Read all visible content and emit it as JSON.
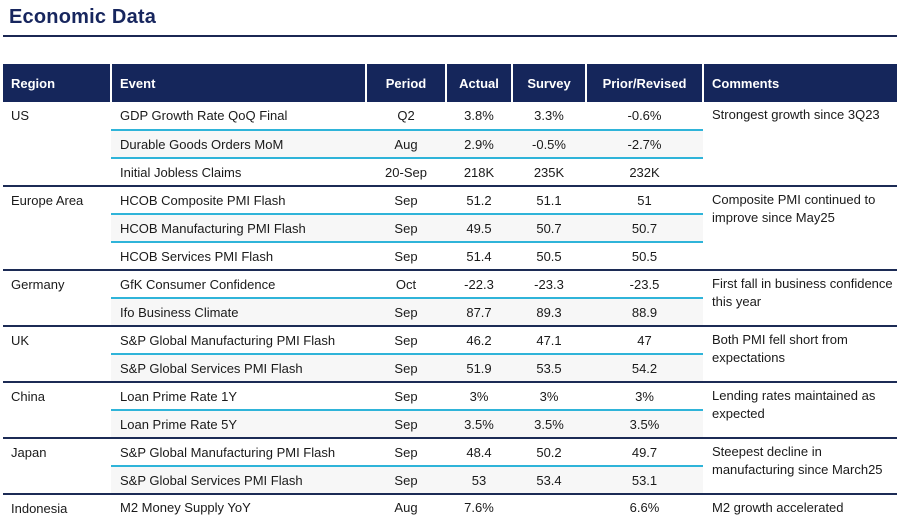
{
  "page_title": "Economic Data",
  "colors": {
    "navy_header": "#15265B",
    "navy_title": "#17265E",
    "cyan_divider": "#2FB4D9",
    "group_divider": "#1C2B55"
  },
  "table": {
    "headers": [
      "Region",
      "Event",
      "Period",
      "Actual",
      "Survey",
      "Prior/Revised",
      "Comments"
    ],
    "groups": [
      {
        "region": "US",
        "comment": "Strongest growth since 3Q23",
        "rows": [
          {
            "event": "GDP Growth Rate QoQ Final",
            "period": "Q2",
            "actual": "3.8%",
            "survey": "3.3%",
            "prior": "-0.6%"
          },
          {
            "event": "Durable Goods Orders MoM",
            "period": "Aug",
            "actual": "2.9%",
            "survey": "-0.5%",
            "prior": "-2.7%"
          },
          {
            "event": "Initial Jobless Claims",
            "period": "20-Sep",
            "actual": "218K",
            "survey": "235K",
            "prior": "232K"
          }
        ]
      },
      {
        "region": "Europe Area",
        "comment": "Composite PMI continued to improve since May25",
        "rows": [
          {
            "event": "HCOB Composite PMI Flash",
            "period": "Sep",
            "actual": "51.2",
            "survey": "51.1",
            "prior": "51"
          },
          {
            "event": "HCOB Manufacturing PMI Flash",
            "period": "Sep",
            "actual": "49.5",
            "survey": "50.7",
            "prior": "50.7"
          },
          {
            "event": "HCOB Services PMI Flash",
            "period": "Sep",
            "actual": "51.4",
            "survey": "50.5",
            "prior": "50.5"
          }
        ]
      },
      {
        "region": "Germany",
        "comment": "First fall in business confidence this year",
        "rows": [
          {
            "event": "GfK Consumer Confidence",
            "period": "Oct",
            "actual": "-22.3",
            "survey": "-23.3",
            "prior": "-23.5"
          },
          {
            "event": "Ifo Business Climate",
            "period": "Sep",
            "actual": "87.7",
            "survey": "89.3",
            "prior": "88.9"
          }
        ]
      },
      {
        "region": "UK",
        "comment": "Both PMI fell short from expectations",
        "rows": [
          {
            "event": "S&P Global Manufacturing PMI Flash",
            "period": "Sep",
            "actual": "46.2",
            "survey": "47.1",
            "prior": "47"
          },
          {
            "event": "S&P Global Services PMI Flash",
            "period": "Sep",
            "actual": "51.9",
            "survey": "53.5",
            "prior": "54.2"
          }
        ]
      },
      {
        "region": "China",
        "comment": "Lending rates maintained as expected",
        "rows": [
          {
            "event": "Loan Prime Rate 1Y",
            "period": "Sep",
            "actual": "3%",
            "survey": "3%",
            "prior": "3%"
          },
          {
            "event": "Loan Prime Rate 5Y",
            "period": "Sep",
            "actual": "3.5%",
            "survey": "3.5%",
            "prior": "3.5%"
          }
        ]
      },
      {
        "region": "Japan",
        "comment": "Steepest decline in manufacturing since March25",
        "rows": [
          {
            "event": "S&P Global Manufacturing PMI Flash",
            "period": "Sep",
            "actual": "48.4",
            "survey": "50.2",
            "prior": "49.7"
          },
          {
            "event": "S&P Global Services PMI Flash",
            "period": "Sep",
            "actual": "53",
            "survey": "53.4",
            "prior": "53.1"
          }
        ]
      },
      {
        "region": "Indonesia",
        "comment": "M2 growth accelerated",
        "rows": [
          {
            "event": "M2 Money Supply YoY",
            "period": "Aug",
            "actual": "7.6%",
            "survey": "",
            "prior": "6.6%"
          }
        ]
      }
    ]
  }
}
